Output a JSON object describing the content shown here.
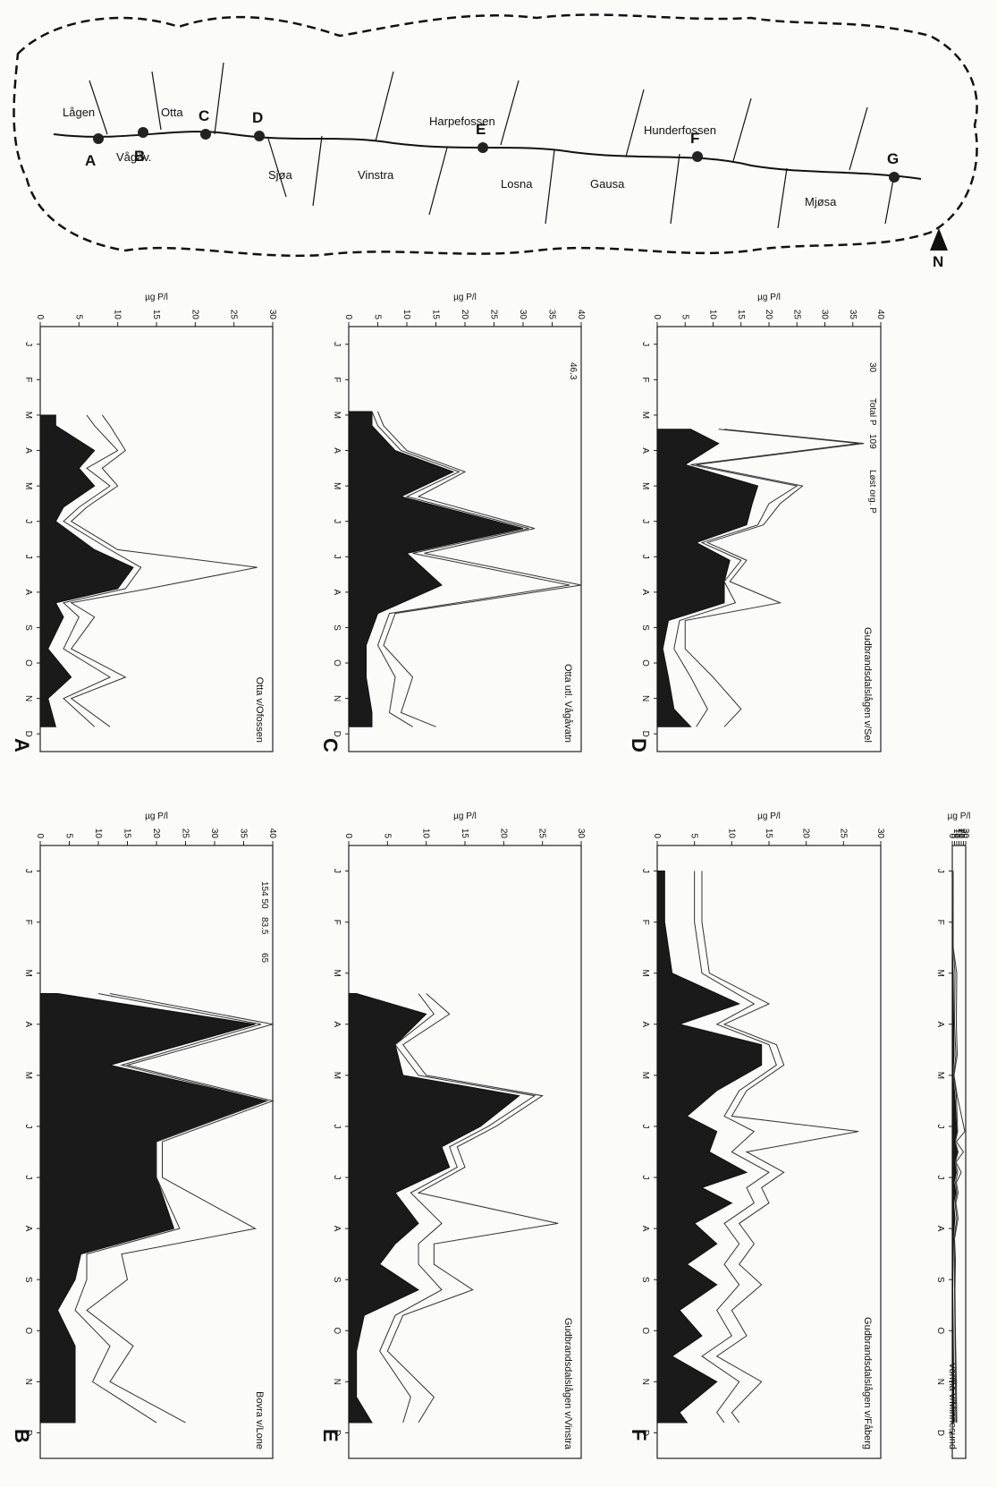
{
  "months": [
    "J",
    "F",
    "M",
    "A",
    "M",
    "J",
    "J",
    "A",
    "S",
    "O",
    "N",
    "D"
  ],
  "ylabel": "µg P/l",
  "map": {
    "labels": [
      "Lågen",
      "Otta",
      "Sjøa",
      "Vinstra",
      "Vågåv.",
      "Harpefossen",
      "Losna",
      "Gausa",
      "Hunderfossen",
      "Mjøsa"
    ],
    "sites": [
      "A",
      "B",
      "C",
      "D",
      "E",
      "F",
      "G"
    ],
    "north": "N"
  },
  "chart_data": [
    {
      "type": "area",
      "panel": "A",
      "title": "Otta v/Ofossen",
      "ylim": [
        0,
        30
      ],
      "yticks": [
        0,
        5,
        10,
        15,
        20,
        25,
        30
      ],
      "series": [
        {
          "name": "Total P",
          "x": [
            3,
            3.3,
            4,
            4.5,
            5,
            5.6,
            6,
            6.8,
            7.3,
            7.9,
            8.3,
            8.7,
            9.6,
            10.4,
            11,
            11.8
          ],
          "values": [
            8,
            9,
            11,
            8,
            10,
            6,
            4,
            10,
            28,
            14,
            4,
            7,
            4,
            11,
            4,
            9
          ]
        },
        {
          "name": "Løst org. P",
          "x": [
            3,
            3.3,
            4,
            4.5,
            5,
            5.6,
            6,
            6.8,
            7.3,
            7.9,
            8.3,
            8.7,
            9.6,
            10.4,
            11,
            11.8
          ],
          "values": [
            6,
            7,
            10,
            6,
            9,
            5,
            3,
            9,
            13,
            11,
            3,
            5,
            3,
            9,
            3,
            7
          ]
        },
        {
          "name": "dark",
          "x": [
            3,
            3.3,
            4,
            4.5,
            5,
            5.6,
            6,
            6.8,
            7.3,
            7.9,
            8.3,
            8.7,
            9.6,
            10.4,
            11,
            11.8
          ],
          "values": [
            2,
            2,
            7,
            5,
            7,
            3,
            2,
            7,
            12,
            10,
            2,
            3,
            1,
            4,
            1,
            2
          ]
        }
      ]
    },
    {
      "type": "area",
      "panel": "B",
      "title": "Bovra v/Lone",
      "ylim": [
        0,
        40
      ],
      "yticks": [
        0,
        5,
        10,
        15,
        20,
        25,
        30,
        35,
        40
      ],
      "annotations": [
        "154 50",
        "83.5",
        "65"
      ],
      "series": [
        {
          "name": "Total P",
          "x": [
            3.4,
            4,
            4.8,
            5.5,
            6.3,
            7,
            8,
            8.5,
            9,
            9.6,
            10.3,
            11,
            11.8
          ],
          "values": [
            12,
            40,
            15,
            40,
            21,
            21,
            37,
            14,
            15,
            8,
            16,
            12,
            25
          ]
        },
        {
          "name": "Løst org. P",
          "x": [
            3.4,
            4,
            4.8,
            5.5,
            6.3,
            7,
            8,
            8.5,
            9,
            9.6,
            10.3,
            11,
            11.8
          ],
          "values": [
            10,
            38,
            14,
            39,
            20,
            20,
            24,
            8,
            8,
            6,
            12,
            9,
            20
          ]
        },
        {
          "name": "dark",
          "x": [
            3.4,
            4,
            4.8,
            5.5,
            6.3,
            7,
            8,
            8.5,
            9,
            9.6,
            10.3,
            11,
            11.8
          ],
          "values": [
            3,
            37,
            12,
            39,
            20,
            20,
            23,
            7,
            6,
            3,
            6,
            6,
            6
          ]
        }
      ]
    },
    {
      "type": "area",
      "panel": "C",
      "title": "Otta utl. Vågåvatn",
      "ylim": [
        0,
        40
      ],
      "yticks": [
        0,
        5,
        10,
        15,
        20,
        25,
        30,
        35,
        40
      ],
      "annotations": [
        "46.3"
      ],
      "series": [
        {
          "name": "Total P",
          "x": [
            2.9,
            3.3,
            4,
            4.6,
            5.3,
            6.2,
            6.9,
            7.8,
            8.6,
            9.5,
            10.4,
            11.4,
            11.8
          ],
          "values": [
            5,
            6,
            10,
            20,
            12,
            32,
            13,
            40,
            8,
            6,
            11,
            9,
            15
          ]
        },
        {
          "name": "Løst org. P",
          "x": [
            2.9,
            3.3,
            4,
            4.6,
            5.3,
            6.2,
            6.9,
            7.8,
            8.6,
            9.5,
            10.4,
            11.4,
            11.8
          ],
          "values": [
            4,
            5,
            9,
            19,
            10,
            31,
            11,
            38,
            7,
            5,
            8,
            7,
            11
          ]
        },
        {
          "name": "dark",
          "x": [
            2.9,
            3.3,
            4,
            4.6,
            5.3,
            6.2,
            6.9,
            7.8,
            8.6,
            9.5,
            10.4,
            11.4,
            11.8
          ],
          "values": [
            4,
            4,
            8,
            18,
            9,
            30,
            10,
            16,
            5,
            3,
            3,
            4,
            4
          ]
        }
      ]
    },
    {
      "type": "area",
      "panel": "D",
      "title": "Gudbrandsdalslågen v/Sel",
      "ylim": [
        0,
        40
      ],
      "yticks": [
        0,
        5,
        10,
        15,
        20,
        25,
        30,
        35,
        40
      ],
      "annotations": [
        "30",
        "Total P",
        "109",
        "Løst org. P"
      ],
      "series": [
        {
          "name": "Total P",
          "x": [
            3.4,
            3.8,
            4.4,
            5,
            5.5,
            6.1,
            6.6,
            7.1,
            7.7,
            8.3,
            8.8,
            9.6,
            10.4,
            11.3,
            11.8
          ],
          "values": [
            12,
            37,
            7,
            26,
            22,
            19,
            9,
            16,
            13,
            22,
            5,
            5,
            10,
            15,
            12
          ]
        },
        {
          "name": "Løst org. P",
          "x": [
            3.4,
            3.8,
            4.4,
            5,
            5.5,
            6.1,
            6.6,
            7.1,
            7.7,
            8.3,
            8.8,
            9.6,
            10.4,
            11.3,
            11.8
          ],
          "values": [
            11,
            36,
            6,
            25,
            20,
            18,
            8,
            15,
            12,
            14,
            4,
            3,
            6,
            9,
            7
          ]
        },
        {
          "name": "dark",
          "x": [
            3.4,
            3.8,
            4.4,
            5,
            5.5,
            6.1,
            6.6,
            7.1,
            7.7,
            8.3,
            8.8,
            9.6,
            10.4,
            11.3,
            11.8
          ],
          "values": [
            6,
            11,
            5,
            18,
            17,
            16,
            7,
            13,
            12,
            12,
            2,
            1,
            2,
            3,
            6
          ]
        }
      ]
    },
    {
      "type": "area",
      "panel": "E",
      "title": "Gudbrandsdalslågen v/Vinstra",
      "ylim": [
        0,
        30
      ],
      "yticks": [
        0,
        5,
        10,
        15,
        20,
        25,
        30
      ],
      "series": [
        {
          "name": "Total P",
          "x": [
            3.4,
            3.8,
            4.4,
            5,
            5.4,
            6,
            6.4,
            6.8,
            7.3,
            7.9,
            8.3,
            8.7,
            9.2,
            9.7,
            10.4,
            11.3,
            11.8
          ],
          "values": [
            10,
            13,
            7,
            10,
            25,
            19,
            14,
            15,
            9,
            27,
            11,
            11,
            16,
            7,
            5,
            11,
            9
          ]
        },
        {
          "name": "Løst org. P",
          "x": [
            3.4,
            3.8,
            4.4,
            5,
            5.4,
            6,
            6.4,
            6.8,
            7.3,
            7.9,
            8.3,
            8.7,
            9.2,
            9.7,
            10.4,
            11.3,
            11.8
          ],
          "values": [
            9,
            11,
            6,
            9,
            24,
            18,
            13,
            14,
            8,
            12,
            9,
            9,
            12,
            6,
            4,
            8,
            7
          ]
        },
        {
          "name": "dark",
          "x": [
            3.4,
            3.8,
            4.4,
            5,
            5.4,
            6,
            6.4,
            6.8,
            7.3,
            7.9,
            8.3,
            8.7,
            9.2,
            9.7,
            10.4,
            11.3,
            11.8
          ],
          "values": [
            1,
            10,
            6,
            7,
            22,
            17,
            12,
            13,
            6,
            9,
            6,
            4,
            9,
            2,
            1,
            1,
            3
          ]
        }
      ]
    },
    {
      "type": "area",
      "panel": "F",
      "title": "Gudbrandsdalslågen v/Fåberg",
      "ylim": [
        0,
        30
      ],
      "yticks": [
        0,
        5,
        10,
        15,
        20,
        25,
        30
      ],
      "series": [
        {
          "name": "Total P",
          "x": [
            1,
            2,
            3,
            3.6,
            4,
            4.4,
            4.8,
            5.3,
            5.8,
            6.1,
            6.5,
            6.9,
            7.2,
            7.5,
            7.9,
            8.3,
            8.7,
            9.1,
            9.6,
            10.1,
            10.5,
            11,
            11.6,
            11.8
          ],
          "values": [
            6,
            6,
            7,
            15,
            9,
            16,
            17,
            12,
            10,
            27,
            12,
            17,
            14,
            15,
            11,
            13,
            11,
            14,
            10,
            12,
            8,
            14,
            10,
            11
          ]
        },
        {
          "name": "Løst org. P",
          "x": [
            1,
            2,
            3,
            3.6,
            4,
            4.4,
            4.8,
            5.3,
            5.8,
            6.1,
            6.5,
            6.9,
            7.2,
            7.5,
            7.9,
            8.3,
            8.7,
            9.1,
            9.6,
            10.1,
            10.5,
            11,
            11.6,
            11.8
          ],
          "values": [
            5,
            5,
            6,
            13,
            8,
            15,
            16,
            11,
            9,
            13,
            10,
            15,
            12,
            13,
            9,
            11,
            9,
            11,
            8,
            10,
            6,
            11,
            8,
            9
          ]
        },
        {
          "name": "dark",
          "x": [
            1,
            2,
            3,
            3.6,
            4,
            4.4,
            4.8,
            5.3,
            5.8,
            6.1,
            6.5,
            6.9,
            7.2,
            7.5,
            7.9,
            8.3,
            8.7,
            9.1,
            9.6,
            10.1,
            10.5,
            11,
            11.6,
            11.8
          ],
          "values": [
            1,
            1,
            2,
            11,
            3,
            14,
            14,
            8,
            4,
            8,
            7,
            12,
            6,
            10,
            5,
            8,
            4,
            8,
            3,
            6,
            2,
            8,
            3,
            4
          ]
        }
      ]
    },
    {
      "type": "area",
      "panel": "G",
      "title": "Vorma v/Minnesund",
      "ylim": [
        0,
        30
      ],
      "yticks": [
        0,
        5,
        10,
        15,
        20,
        25,
        30
      ],
      "series": [
        {
          "name": "Total P",
          "x": [
            1,
            2.5,
            3,
            4,
            4.6,
            5,
            5.4,
            6.1,
            6.3,
            6.5,
            6.7,
            6.9,
            7.1,
            7.3,
            7.5,
            7.8,
            8.2,
            8.6,
            9.2,
            10,
            11,
            11.8
          ],
          "values": [
            2,
            2,
            10,
            9,
            11,
            4,
            11,
            28,
            9,
            25,
            8,
            20,
            9,
            13,
            8,
            13,
            5,
            7,
            6,
            7,
            9,
            10
          ]
        },
        {
          "name": "Løst org. P",
          "x": [
            1,
            2.5,
            3,
            4,
            4.6,
            5,
            5.4,
            6.1,
            6.3,
            6.5,
            6.7,
            6.9,
            7.1,
            7.3,
            7.5,
            7.8,
            8.2,
            8.6,
            9.2,
            10,
            11,
            11.8
          ],
          "values": [
            1,
            2,
            6,
            5,
            8,
            3,
            9,
            12,
            7,
            13,
            7,
            12,
            7,
            10,
            6,
            10,
            4,
            5,
            5,
            6,
            7,
            8
          ]
        },
        {
          "name": "dark",
          "x": [
            1,
            2.5,
            3,
            4,
            4.6,
            5,
            5.4,
            6.1,
            6.3,
            6.5,
            6.7,
            6.9,
            7.1,
            7.3,
            7.5,
            7.8,
            8.2,
            8.6,
            9.2,
            10,
            11,
            11.8
          ],
          "values": [
            0,
            0,
            2,
            3,
            4,
            1,
            6,
            10,
            5,
            11,
            5,
            9,
            4,
            8,
            3,
            6,
            2,
            2,
            1,
            2,
            3,
            4
          ]
        }
      ]
    }
  ]
}
